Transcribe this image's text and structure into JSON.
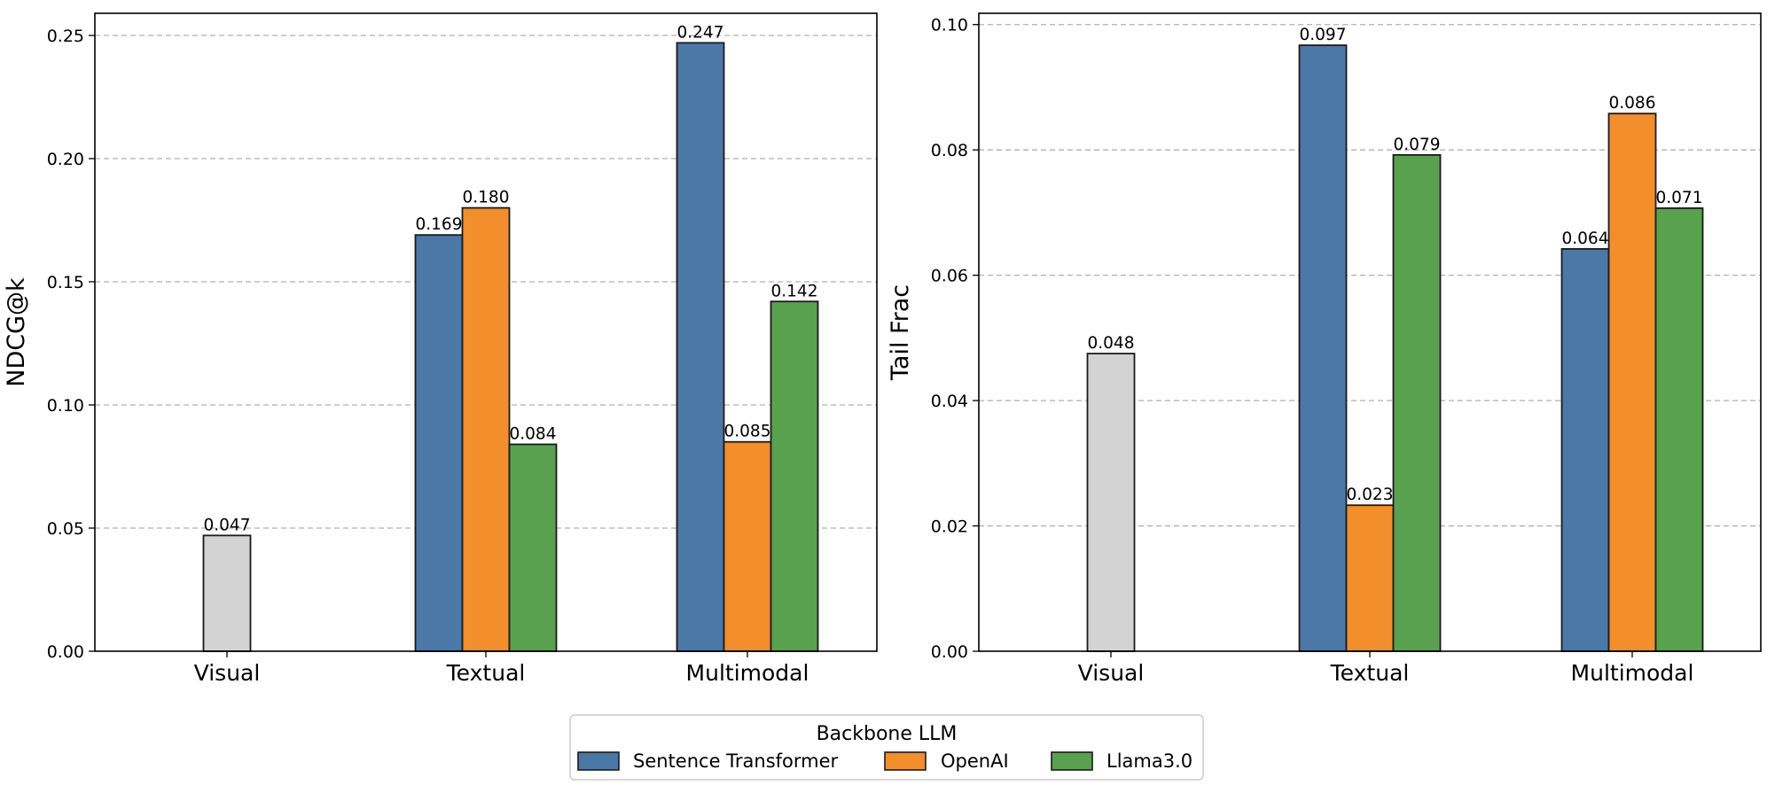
{
  "colors": {
    "Visual": "#d3d3d3",
    "Sentence Transformer": "#4c78a8",
    "OpenAI": "#f28e2b",
    "Llama3.0": "#59a14f",
    "edge": "#1a1a1a",
    "grid": "#b0b0b0"
  },
  "legend": {
    "title": "Backbone LLM",
    "entries": [
      "Sentence Transformer",
      "OpenAI",
      "Llama3.0"
    ]
  },
  "chart_data": [
    {
      "type": "bar",
      "title": "",
      "xlabel": "",
      "ylabel": "NDCG@k",
      "categories": [
        "Visual",
        "Textual",
        "Multimodal"
      ],
      "ylim": [
        0,
        0.259
      ],
      "yticks": [
        0.0,
        0.05,
        0.1,
        0.15,
        0.2,
        0.25
      ],
      "ytick_labels": [
        "0.00",
        "0.05",
        "0.10",
        "0.15",
        "0.20",
        "0.25"
      ],
      "grid": true,
      "visual_baseline": {
        "value": 0.047,
        "label": "0.047"
      },
      "series": [
        {
          "name": "Sentence Transformer",
          "values": [
            null,
            0.169,
            0.247
          ],
          "labels": [
            null,
            "0.169",
            "0.247"
          ]
        },
        {
          "name": "OpenAI",
          "values": [
            null,
            0.18,
            0.085
          ],
          "labels": [
            null,
            "0.180",
            "0.085"
          ]
        },
        {
          "name": "Llama3.0",
          "values": [
            null,
            0.084,
            0.142
          ],
          "labels": [
            null,
            "0.084",
            "0.142"
          ]
        }
      ]
    },
    {
      "type": "bar",
      "title": "",
      "xlabel": "",
      "ylabel": "Tail Frac",
      "categories": [
        "Visual",
        "Textual",
        "Multimodal"
      ],
      "ylim": [
        0,
        0.1018
      ],
      "yticks": [
        0.0,
        0.02,
        0.04,
        0.06,
        0.08,
        0.1
      ],
      "ytick_labels": [
        "0.00",
        "0.02",
        "0.04",
        "0.06",
        "0.08",
        "0.10"
      ],
      "grid": true,
      "visual_baseline": {
        "value": 0.0475,
        "label": "0.048"
      },
      "series": [
        {
          "name": "Sentence Transformer",
          "values": [
            null,
            0.0967,
            0.0642
          ],
          "labels": [
            null,
            "0.097",
            "0.064"
          ]
        },
        {
          "name": "OpenAI",
          "values": [
            null,
            0.0233,
            0.0858
          ],
          "labels": [
            null,
            "0.023",
            "0.086"
          ]
        },
        {
          "name": "Llama3.0",
          "values": [
            null,
            0.0792,
            0.0707
          ],
          "labels": [
            null,
            "0.079",
            "0.071"
          ]
        }
      ]
    }
  ]
}
